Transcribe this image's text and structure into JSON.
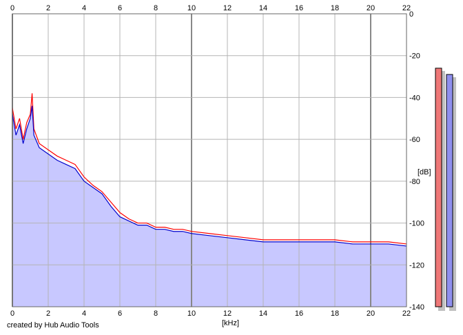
{
  "chart_data": {
    "type": "line",
    "xlabel": "[kHz]",
    "ylabel": "[dB]",
    "xlim": [
      0,
      22
    ],
    "ylim": [
      -140,
      0
    ],
    "x_ticks": [
      "0",
      "2",
      "4",
      "6",
      "8",
      "10",
      "12",
      "14",
      "16",
      "18",
      "20",
      "22"
    ],
    "y_ticks": [
      "0",
      "-20",
      "-40",
      "-60",
      "-80",
      "-100",
      "-120",
      "-140"
    ],
    "grid": true,
    "series": [
      {
        "color": "#ff0000",
        "x": [
          0.0,
          0.2,
          0.4,
          0.6,
          0.8,
          1.0,
          1.1,
          1.2,
          1.5,
          2.0,
          2.5,
          3.0,
          3.5,
          4.0,
          4.5,
          5.0,
          5.5,
          6.0,
          6.5,
          7.0,
          7.5,
          8.0,
          8.5,
          9.0,
          9.5,
          10.0,
          11.0,
          12.0,
          13.0,
          14.0,
          15.0,
          16.0,
          17.0,
          18.0,
          19.0,
          20.0,
          21.0,
          22.0
        ],
        "y": [
          -45,
          -55,
          -50,
          -60,
          -52,
          -48,
          -38,
          -55,
          -62,
          -65,
          -68,
          -70,
          -72,
          -78,
          -82,
          -85,
          -90,
          -95,
          -98,
          -100,
          -100,
          -102,
          -102,
          -103,
          -103,
          -104,
          -105,
          -106,
          -107,
          -108,
          -108,
          -108,
          -108,
          -108,
          -109,
          -109,
          -109,
          -110
        ]
      },
      {
        "color": "#0000cc",
        "x": [
          0.0,
          0.2,
          0.4,
          0.6,
          0.8,
          1.0,
          1.1,
          1.2,
          1.5,
          2.0,
          2.5,
          3.0,
          3.5,
          4.0,
          4.5,
          5.0,
          5.5,
          6.0,
          6.5,
          7.0,
          7.5,
          8.0,
          8.5,
          9.0,
          9.5,
          10.0,
          11.0,
          12.0,
          13.0,
          14.0,
          15.0,
          16.0,
          17.0,
          18.0,
          19.0,
          20.0,
          21.0,
          22.0
        ],
        "y": [
          -48,
          -58,
          -53,
          -62,
          -55,
          -50,
          -44,
          -58,
          -64,
          -67,
          -70,
          -72,
          -74,
          -80,
          -83,
          -86,
          -92,
          -97,
          -99,
          -101,
          -101,
          -103,
          -103,
          -104,
          -104,
          -105,
          -106,
          -107,
          -108,
          -109,
          -109,
          -109,
          -109,
          -109,
          -110,
          -110,
          -110,
          -111
        ]
      }
    ],
    "meters": {
      "left_level_db": -26,
      "right_level_db": -29
    }
  },
  "colors": {
    "fill": "#c8c8ff",
    "grid": "#b4b4b4",
    "grid_major": "#888888",
    "meter_left": "#ee7777",
    "meter_right": "#8f8fee",
    "meter_shadow": "#c0c0c0"
  },
  "footer": {
    "credit": "created by Hub Audio Tools"
  }
}
